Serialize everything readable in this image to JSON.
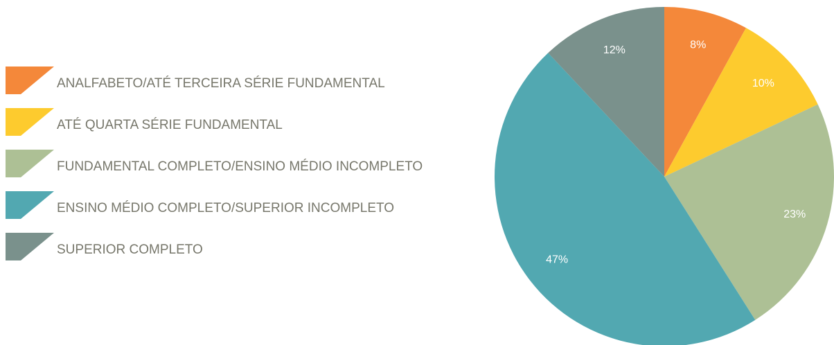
{
  "chart_data": {
    "type": "pie",
    "categories": [
      "ANALFABETO/ATÉ TERCEIRA SÉRIE FUNDAMENTAL",
      "ATÉ QUARTA SÉRIE FUNDAMENTAL",
      "FUNDAMENTAL COMPLETO/ENSINO MÉDIO INCOMPLETO",
      "ENSINO MÉDIO COMPLETO/SUPERIOR INCOMPLETO",
      "SUPERIOR COMPLETO"
    ],
    "values": [
      8,
      10,
      23,
      47,
      12
    ],
    "value_labels": [
      "8%",
      "10%",
      "23%",
      "47%",
      "12%"
    ],
    "colors": [
      "#f4883a",
      "#fdcb2e",
      "#adc095",
      "#52a8b1",
      "#7a918c"
    ]
  }
}
